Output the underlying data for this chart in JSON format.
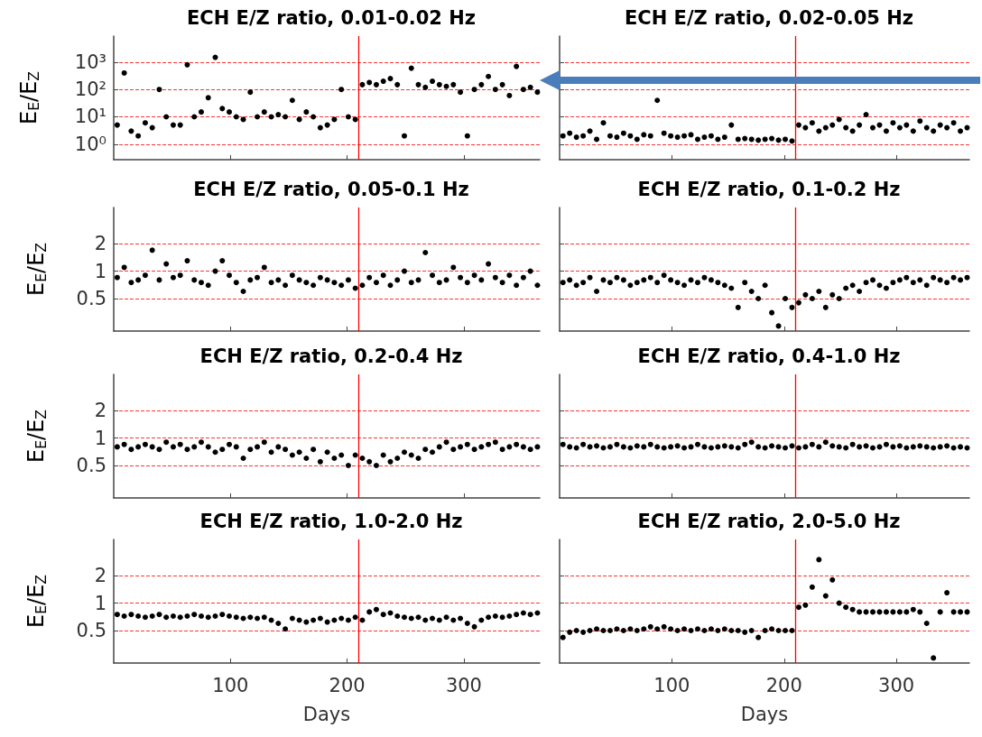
{
  "chart_data": [
    {
      "type": "scatter",
      "title": "ECH E/Z ratio, 0.01-0.02 Hz",
      "ylabel": "E$_{E}$/E$_{Z}$",
      "log": "y",
      "grid": "y",
      "marker": "circle",
      "tick_labels": "y",
      "xlim": [
        0,
        365
      ],
      "xticks": [
        100,
        200,
        300
      ],
      "ylim": [
        0.27,
        9000
      ],
      "yticks": [
        {
          "value": 1,
          "label": "10⁰"
        },
        {
          "value": 10,
          "label": "10¹"
        },
        {
          "value": 100,
          "label": "10²"
        },
        {
          "value": 1000,
          "label": "10³"
        }
      ],
      "ref_lines": [
        {
          "axis": "x",
          "value": 210,
          "color": "#ff0000"
        }
      ],
      "x": [
        3,
        9,
        15,
        21,
        27,
        33,
        39,
        45,
        51,
        57,
        63,
        69,
        75,
        81,
        87,
        93,
        99,
        105,
        111,
        117,
        123,
        129,
        135,
        141,
        147,
        153,
        159,
        165,
        171,
        177,
        183,
        189,
        195,
        201,
        207,
        213,
        219,
        225,
        231,
        237,
        243,
        249,
        255,
        261,
        267,
        273,
        279,
        285,
        291,
        297,
        303,
        309,
        315,
        321,
        327,
        333,
        339,
        345,
        351,
        357,
        363
      ],
      "series": [
        {
          "color": "#000000",
          "values": [
            5,
            400,
            3,
            2,
            6,
            4,
            100,
            10,
            5,
            5,
            800,
            10,
            15,
            50,
            1500,
            20,
            15,
            10,
            8,
            80,
            10,
            15,
            10,
            12,
            10,
            40,
            8,
            15,
            10,
            4,
            5,
            8,
            100,
            10,
            8,
            150,
            180,
            150,
            200,
            250,
            150,
            2,
            600,
            150,
            120,
            200,
            150,
            130,
            150,
            80,
            2,
            100,
            150,
            300,
            100,
            150,
            60,
            700,
            100,
            120,
            80
          ]
        }
      ]
    },
    {
      "type": "scatter",
      "title": "ECH E/Z ratio, 0.02-0.05 Hz",
      "log": "y",
      "grid": "y",
      "marker": "circle",
      "tick_labels": false,
      "xlim": [
        0,
        365
      ],
      "xticks": [
        100,
        200,
        300
      ],
      "ylim": [
        0.27,
        9000
      ],
      "yticks": [
        1,
        10,
        100,
        1000
      ],
      "ref_lines": [
        {
          "axis": "x",
          "value": 210,
          "color": "#ff0000"
        }
      ],
      "x": [
        3,
        9,
        15,
        21,
        27,
        33,
        39,
        45,
        51,
        57,
        63,
        69,
        75,
        81,
        87,
        93,
        99,
        105,
        111,
        117,
        123,
        129,
        135,
        141,
        147,
        153,
        159,
        165,
        171,
        177,
        183,
        189,
        195,
        201,
        207,
        213,
        219,
        225,
        231,
        237,
        243,
        249,
        255,
        261,
        267,
        273,
        279,
        285,
        291,
        297,
        303,
        309,
        315,
        321,
        327,
        333,
        339,
        345,
        351,
        357,
        363
      ],
      "series": [
        {
          "color": "#000000",
          "values": [
            2,
            2.5,
            1.8,
            2,
            3,
            1.5,
            6,
            2,
            1.8,
            2.5,
            2,
            1.5,
            2.2,
            2,
            40,
            2.5,
            2,
            1.8,
            2,
            2.2,
            1.5,
            1.8,
            2,
            1.5,
            1.8,
            5,
            1.5,
            1.6,
            1.5,
            1.4,
            1.5,
            1.6,
            1.4,
            1.5,
            1.3,
            5,
            4,
            6,
            3,
            4,
            5,
            8,
            4,
            3,
            5,
            12,
            4,
            5,
            3,
            6,
            4,
            5,
            3,
            7,
            4,
            3,
            5,
            4,
            6,
            3,
            4
          ]
        }
      ]
    },
    {
      "type": "scatter",
      "title": "ECH E/Z ratio, 0.05-0.1 Hz",
      "ylabel": "E$_{E}$/E$_{Z}$",
      "log": "y",
      "grid": "y",
      "marker": "circle",
      "tick_labels": "y",
      "xlim": [
        0,
        365
      ],
      "xticks": [
        100,
        200,
        300
      ],
      "ylim": [
        0.22,
        5
      ],
      "yticks": [
        0.5,
        1,
        2
      ],
      "ref_lines": [
        {
          "axis": "x",
          "value": 210,
          "color": "#ff0000"
        }
      ],
      "x": [
        3,
        9,
        15,
        21,
        27,
        33,
        39,
        45,
        51,
        57,
        63,
        69,
        75,
        81,
        87,
        93,
        99,
        105,
        111,
        117,
        123,
        129,
        135,
        141,
        147,
        153,
        159,
        165,
        171,
        177,
        183,
        189,
        195,
        201,
        207,
        213,
        219,
        225,
        231,
        237,
        243,
        249,
        255,
        261,
        267,
        273,
        279,
        285,
        291,
        297,
        303,
        309,
        315,
        321,
        327,
        333,
        339,
        345,
        351,
        357,
        363
      ],
      "series": [
        {
          "color": "#000000",
          "values": [
            0.85,
            1.1,
            0.75,
            0.8,
            0.9,
            1.7,
            0.8,
            1.2,
            0.85,
            0.9,
            1.3,
            0.8,
            0.75,
            0.7,
            1.0,
            1.3,
            0.9,
            0.75,
            0.6,
            0.8,
            0.85,
            1.1,
            0.75,
            0.8,
            0.7,
            0.9,
            0.8,
            0.75,
            0.7,
            0.85,
            0.8,
            0.75,
            0.7,
            0.8,
            0.65,
            0.7,
            0.85,
            0.75,
            0.9,
            0.7,
            0.8,
            1.0,
            0.75,
            0.8,
            1.6,
            0.9,
            0.75,
            0.8,
            1.1,
            0.85,
            0.75,
            0.9,
            0.8,
            1.2,
            0.85,
            0.75,
            0.9,
            0.7,
            0.85,
            1.0,
            0.7
          ]
        }
      ]
    },
    {
      "type": "scatter",
      "title": "ECH E/Z ratio, 0.1-0.2 Hz",
      "log": "y",
      "grid": "y",
      "marker": "circle",
      "tick_labels": false,
      "xlim": [
        0,
        365
      ],
      "xticks": [
        100,
        200,
        300
      ],
      "ylim": [
        0.22,
        5
      ],
      "yticks": [
        0.5,
        1,
        2
      ],
      "ref_lines": [
        {
          "axis": "x",
          "value": 210,
          "color": "#ff0000"
        }
      ],
      "x": [
        3,
        9,
        15,
        21,
        27,
        33,
        39,
        45,
        51,
        57,
        63,
        69,
        75,
        81,
        87,
        93,
        99,
        105,
        111,
        117,
        123,
        129,
        135,
        141,
        147,
        153,
        159,
        165,
        171,
        177,
        183,
        189,
        195,
        201,
        207,
        213,
        219,
        225,
        231,
        237,
        243,
        249,
        255,
        261,
        267,
        273,
        279,
        285,
        291,
        297,
        303,
        309,
        315,
        321,
        327,
        333,
        339,
        345,
        351,
        357,
        363
      ],
      "series": [
        {
          "color": "#000000",
          "values": [
            0.75,
            0.8,
            0.7,
            0.75,
            0.85,
            0.6,
            0.8,
            0.75,
            0.85,
            0.8,
            0.7,
            0.75,
            0.8,
            0.85,
            0.75,
            0.9,
            0.8,
            0.75,
            0.7,
            0.8,
            0.75,
            0.85,
            0.8,
            0.75,
            0.7,
            0.65,
            0.4,
            0.75,
            0.6,
            0.5,
            0.7,
            0.35,
            0.25,
            0.5,
            0.4,
            0.45,
            0.55,
            0.5,
            0.6,
            0.4,
            0.55,
            0.5,
            0.65,
            0.7,
            0.6,
            0.75,
            0.8,
            0.7,
            0.65,
            0.75,
            0.8,
            0.85,
            0.75,
            0.8,
            0.7,
            0.85,
            0.8,
            0.75,
            0.85,
            0.8,
            0.85
          ]
        }
      ]
    },
    {
      "type": "scatter",
      "title": "ECH E/Z ratio, 0.2-0.4 Hz",
      "ylabel": "E$_{E}$/E$_{Z}$",
      "log": "y",
      "grid": "y",
      "marker": "circle",
      "tick_labels": "y",
      "xlim": [
        0,
        365
      ],
      "xticks": [
        100,
        200,
        300
      ],
      "ylim": [
        0.22,
        5
      ],
      "yticks": [
        0.5,
        1,
        2
      ],
      "ref_lines": [
        {
          "axis": "x",
          "value": 210,
          "color": "#ff0000"
        }
      ],
      "x": [
        3,
        9,
        15,
        21,
        27,
        33,
        39,
        45,
        51,
        57,
        63,
        69,
        75,
        81,
        87,
        93,
        99,
        105,
        111,
        117,
        123,
        129,
        135,
        141,
        147,
        153,
        159,
        165,
        171,
        177,
        183,
        189,
        195,
        201,
        207,
        213,
        219,
        225,
        231,
        237,
        243,
        249,
        255,
        261,
        267,
        273,
        279,
        285,
        291,
        297,
        303,
        309,
        315,
        321,
        327,
        333,
        339,
        345,
        351,
        357,
        363
      ],
      "series": [
        {
          "color": "#000000",
          "values": [
            0.8,
            0.85,
            0.75,
            0.8,
            0.85,
            0.8,
            0.75,
            0.9,
            0.8,
            0.85,
            0.75,
            0.8,
            0.9,
            0.8,
            0.7,
            0.75,
            0.85,
            0.8,
            0.6,
            0.75,
            0.8,
            0.9,
            0.7,
            0.8,
            0.75,
            0.65,
            0.7,
            0.6,
            0.75,
            0.55,
            0.7,
            0.6,
            0.65,
            0.5,
            0.65,
            0.6,
            0.55,
            0.5,
            0.65,
            0.55,
            0.6,
            0.7,
            0.65,
            0.6,
            0.75,
            0.7,
            0.8,
            0.9,
            0.75,
            0.8,
            0.85,
            0.75,
            0.8,
            0.85,
            0.9,
            0.75,
            0.8,
            0.85,
            0.8,
            0.75,
            0.8
          ]
        }
      ]
    },
    {
      "type": "scatter",
      "title": "ECH E/Z ratio, 0.4-1.0 Hz",
      "log": "y",
      "grid": "y",
      "marker": "circle",
      "tick_labels": false,
      "xlim": [
        0,
        365
      ],
      "xticks": [
        100,
        200,
        300
      ],
      "ylim": [
        0.22,
        5
      ],
      "yticks": [
        0.5,
        1,
        2
      ],
      "ref_lines": [
        {
          "axis": "x",
          "value": 210,
          "color": "#ff0000"
        }
      ],
      "x": [
        3,
        9,
        15,
        21,
        27,
        33,
        39,
        45,
        51,
        57,
        63,
        69,
        75,
        81,
        87,
        93,
        99,
        105,
        111,
        117,
        123,
        129,
        135,
        141,
        147,
        153,
        159,
        165,
        171,
        177,
        183,
        189,
        195,
        201,
        207,
        213,
        219,
        225,
        231,
        237,
        243,
        249,
        255,
        261,
        267,
        273,
        279,
        285,
        291,
        297,
        303,
        309,
        315,
        321,
        327,
        333,
        339,
        345,
        351,
        357,
        363
      ],
      "series": [
        {
          "color": "#000000",
          "values": [
            0.85,
            0.8,
            0.78,
            0.85,
            0.8,
            0.82,
            0.78,
            0.8,
            0.85,
            0.8,
            0.78,
            0.82,
            0.8,
            0.85,
            0.8,
            0.78,
            0.8,
            0.82,
            0.78,
            0.8,
            0.85,
            0.8,
            0.78,
            0.8,
            0.82,
            0.8,
            0.78,
            0.85,
            0.9,
            0.8,
            0.78,
            0.82,
            0.8,
            0.78,
            0.82,
            0.78,
            0.8,
            0.85,
            0.8,
            0.9,
            0.82,
            0.8,
            0.78,
            0.85,
            0.8,
            0.82,
            0.78,
            0.8,
            0.85,
            0.8,
            0.82,
            0.78,
            0.8,
            0.82,
            0.8,
            0.78,
            0.8,
            0.82,
            0.78,
            0.8,
            0.78
          ]
        }
      ]
    },
    {
      "type": "scatter",
      "title": "ECH E/Z ratio, 1.0-2.0 Hz",
      "ylabel": "E$_{E}$/E$_{Z}$",
      "xlabel": "Days",
      "log": "y",
      "grid": "y",
      "marker": "circle",
      "xlim": [
        0,
        365
      ],
      "xticks": [
        100,
        200,
        300
      ],
      "ylim": [
        0.22,
        5
      ],
      "yticks": [
        0.5,
        1,
        2
      ],
      "ref_lines": [
        {
          "axis": "x",
          "value": 210,
          "color": "#ff0000"
        }
      ],
      "x": [
        3,
        9,
        15,
        21,
        27,
        33,
        39,
        45,
        51,
        57,
        63,
        69,
        75,
        81,
        87,
        93,
        99,
        105,
        111,
        117,
        123,
        129,
        135,
        141,
        147,
        153,
        159,
        165,
        171,
        177,
        183,
        189,
        195,
        201,
        207,
        213,
        219,
        225,
        231,
        237,
        243,
        249,
        255,
        261,
        267,
        273,
        279,
        285,
        291,
        297,
        303,
        309,
        315,
        321,
        327,
        333,
        339,
        345,
        351,
        357,
        363
      ],
      "series": [
        {
          "color": "#000000",
          "values": [
            0.75,
            0.72,
            0.75,
            0.72,
            0.7,
            0.72,
            0.75,
            0.7,
            0.72,
            0.7,
            0.72,
            0.75,
            0.72,
            0.7,
            0.72,
            0.75,
            0.72,
            0.7,
            0.68,
            0.7,
            0.68,
            0.7,
            0.65,
            0.6,
            0.52,
            0.68,
            0.65,
            0.62,
            0.65,
            0.68,
            0.62,
            0.65,
            0.68,
            0.65,
            0.7,
            0.65,
            0.8,
            0.85,
            0.75,
            0.78,
            0.72,
            0.7,
            0.68,
            0.7,
            0.65,
            0.68,
            0.65,
            0.7,
            0.65,
            0.68,
            0.6,
            0.55,
            0.65,
            0.7,
            0.72,
            0.7,
            0.72,
            0.75,
            0.78,
            0.75,
            0.78
          ]
        }
      ]
    },
    {
      "type": "scatter",
      "title": "ECH E/Z ratio, 2.0-5.0 Hz",
      "xlabel": "Days",
      "log": "y",
      "grid": "y",
      "marker": "circle",
      "tick_labels": "x",
      "xlim": [
        0,
        365
      ],
      "xticks": [
        100,
        200,
        300
      ],
      "ylim": [
        0.22,
        5
      ],
      "yticks": [
        0.5,
        1,
        2
      ],
      "ref_lines": [
        {
          "axis": "x",
          "value": 210,
          "color": "#ff0000"
        }
      ],
      "x": [
        3,
        9,
        15,
        21,
        27,
        33,
        39,
        45,
        51,
        57,
        63,
        69,
        75,
        81,
        87,
        93,
        99,
        105,
        111,
        117,
        123,
        129,
        135,
        141,
        147,
        153,
        159,
        165,
        171,
        177,
        183,
        189,
        195,
        201,
        207,
        213,
        219,
        225,
        231,
        237,
        243,
        249,
        255,
        261,
        267,
        273,
        279,
        285,
        291,
        297,
        303,
        309,
        315,
        321,
        327,
        333,
        339,
        345,
        351,
        357,
        363
      ],
      "series": [
        {
          "color": "#000000",
          "values": [
            0.42,
            0.48,
            0.5,
            0.48,
            0.5,
            0.52,
            0.5,
            0.5,
            0.52,
            0.5,
            0.52,
            0.5,
            0.52,
            0.55,
            0.52,
            0.55,
            0.52,
            0.5,
            0.52,
            0.5,
            0.52,
            0.5,
            0.52,
            0.5,
            0.52,
            0.5,
            0.5,
            0.48,
            0.5,
            0.42,
            0.5,
            0.52,
            0.5,
            0.5,
            0.5,
            0.9,
            0.95,
            1.5,
            3.0,
            1.2,
            1.8,
            1.0,
            0.9,
            0.85,
            0.8,
            0.8,
            0.8,
            0.8,
            0.8,
            0.8,
            0.8,
            0.8,
            0.85,
            0.8,
            0.6,
            0.25,
            0.8,
            1.3,
            0.8,
            0.8,
            0.8
          ]
        }
      ]
    }
  ]
}
